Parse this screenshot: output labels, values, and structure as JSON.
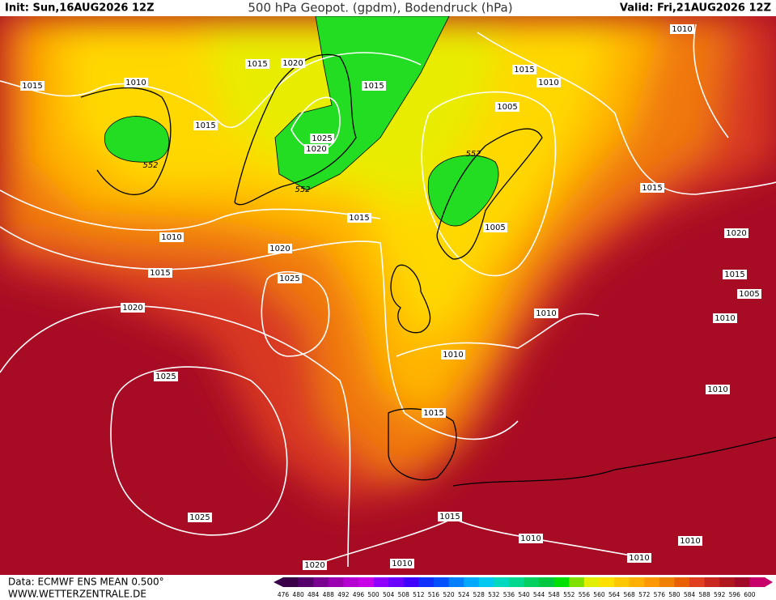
{
  "header": {
    "init": "Init: Sun,16AUG2026 12Z",
    "title": "500 hPa Geopot. (gpdm), Bodendruck (hPa)",
    "valid": "Valid: Fri,21AUG2026 12Z"
  },
  "isobar_labels": [
    1015,
    1010,
    1015,
    1015,
    1020,
    1015,
    1025,
    1020,
    1015,
    1010,
    1015,
    1020,
    1025,
    1020,
    1025,
    1025,
    1020,
    1010,
    1015,
    1010,
    1010,
    1010,
    1015,
    1010,
    1010,
    1005,
    1005,
    1015,
    1010,
    1010,
    1015,
    1020,
    1015,
    1005,
    1010,
    1010
  ],
  "geopotential_labels": [
    552,
    552,
    552
  ],
  "colorbar": {
    "labels": [
      476,
      480,
      484,
      488,
      492,
      496,
      500,
      504,
      508,
      512,
      516,
      520,
      524,
      528,
      532,
      536,
      540,
      544,
      548,
      552,
      556,
      560,
      564,
      568,
      572,
      576,
      580,
      584,
      588,
      592,
      596,
      600
    ],
    "colors": [
      "#3a0048",
      "#55006a",
      "#7a0090",
      "#9a00b0",
      "#b400d0",
      "#c800e8",
      "#9000ff",
      "#6a00ff",
      "#4000ff",
      "#1030ff",
      "#0050ff",
      "#0080ff",
      "#00a8ff",
      "#00c8f0",
      "#00d8c0",
      "#00d890",
      "#00d060",
      "#00c840",
      "#00e000",
      "#80e000",
      "#e0f000",
      "#ffe000",
      "#ffc800",
      "#ffb000",
      "#ff9800",
      "#f08000",
      "#e86000",
      "#e04020",
      "#c82820",
      "#b01820",
      "#a00a28",
      "#c8006a"
    ]
  },
  "footer": {
    "data": "Data: ECMWF ENS MEAN 0.500°",
    "url": "WWW.WETTERZENTRALE.DE"
  }
}
